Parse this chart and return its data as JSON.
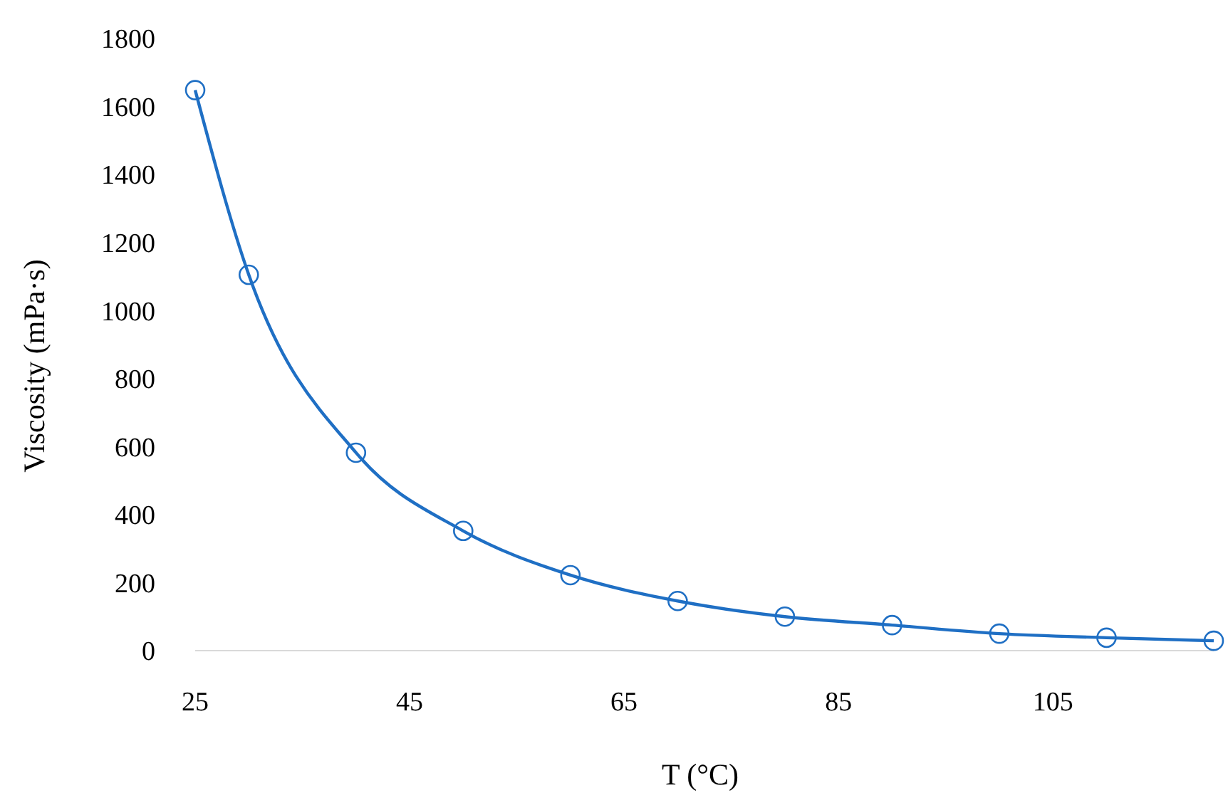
{
  "chart_data": {
    "type": "line",
    "xlabel": "T (°C)",
    "ylabel": "Viscosity (mPa·s)",
    "x": [
      25,
      30,
      40,
      50,
      60,
      70,
      80,
      90,
      100,
      110,
      120
    ],
    "series": [
      {
        "color": "#1f6fc4",
        "values": [
          1648,
          1105,
          582,
          352,
          222,
          146,
          100,
          75,
          50,
          38,
          29
        ]
      }
    ],
    "xlim": [
      25,
      120
    ],
    "xticks": [
      25,
      45,
      65,
      85,
      105
    ],
    "ylim": [
      0,
      1800
    ],
    "yticks": [
      0,
      200,
      400,
      600,
      800,
      1000,
      1200,
      1400,
      1600,
      1800
    ],
    "marker": "circle",
    "line_style": "solid"
  }
}
